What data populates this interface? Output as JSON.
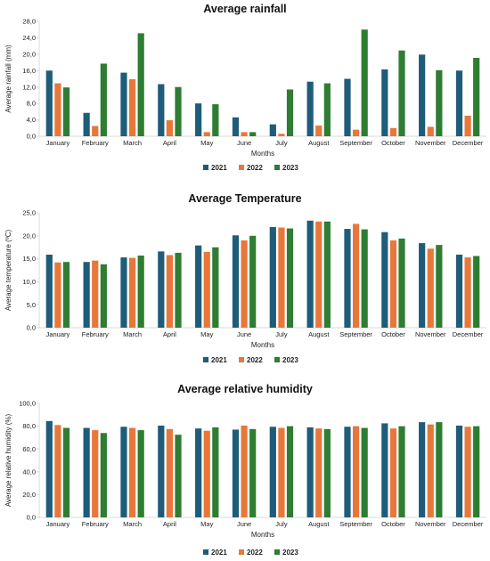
{
  "colors": {
    "s2021": "#1f5c7a",
    "s2022": "#e8773a",
    "s2023": "#2e7d32",
    "axis": "#d9d9d9"
  },
  "chart_data": [
    {
      "type": "bar",
      "title": "Average rainfall",
      "xlabel": "Months",
      "ylabel": "Average rainfall (mm)",
      "ylim": [
        0,
        28
      ],
      "yticks": [
        "0,0",
        "4,0",
        "8,0",
        "12,0",
        "16,0",
        "20,0",
        "24,0",
        "28,0"
      ],
      "categories": [
        "January",
        "February",
        "March",
        "April",
        "May",
        "June",
        "July",
        "August",
        "September",
        "October",
        "November",
        "December"
      ],
      "series": [
        {
          "name": "2021",
          "values": [
            16.0,
            5.7,
            15.5,
            12.7,
            8.0,
            4.6,
            2.9,
            13.3,
            14.0,
            16.3,
            19.9,
            16.0
          ]
        },
        {
          "name": "2022",
          "values": [
            12.9,
            2.5,
            13.9,
            3.9,
            1.0,
            1.0,
            0.6,
            2.6,
            1.6,
            2.0,
            2.3,
            5.0
          ]
        },
        {
          "name": "2023",
          "values": [
            11.9,
            17.7,
            25.1,
            12.0,
            7.8,
            1.0,
            11.4,
            12.9,
            26.0,
            20.9,
            16.1,
            19.1
          ]
        }
      ],
      "legend": "bottom",
      "grid": false
    },
    {
      "type": "bar",
      "title": "Average Temperature",
      "xlabel": "Months",
      "ylabel": "Average temperature (ºC)",
      "ylim": [
        0,
        25
      ],
      "yticks": [
        "0,0",
        "5,0",
        "10,0",
        "15,0",
        "20,0",
        "25,0"
      ],
      "categories": [
        "January",
        "February",
        "March",
        "April",
        "May",
        "June",
        "July",
        "August",
        "September",
        "October",
        "November",
        "December"
      ],
      "series": [
        {
          "name": "2021",
          "values": [
            15.9,
            14.3,
            15.3,
            16.6,
            17.9,
            20.1,
            21.9,
            23.3,
            21.5,
            20.8,
            18.4,
            15.9
          ]
        },
        {
          "name": "2022",
          "values": [
            14.2,
            14.6,
            15.2,
            15.8,
            16.5,
            19.0,
            21.8,
            23.1,
            22.6,
            19.0,
            17.2,
            15.3
          ]
        },
        {
          "name": "2023",
          "values": [
            14.3,
            13.8,
            15.7,
            16.3,
            17.5,
            20.0,
            21.6,
            23.1,
            21.4,
            19.4,
            18.0,
            15.6
          ]
        }
      ],
      "legend": "bottom",
      "grid": false
    },
    {
      "type": "bar",
      "title": "Average relative humidity",
      "xlabel": "Months",
      "ylabel": "Average relative humidity (%)",
      "ylim": [
        0,
        100
      ],
      "yticks": [
        "0,0",
        "20,0",
        "40,0",
        "60,0",
        "80,0",
        "100,0"
      ],
      "categories": [
        "January",
        "February",
        "March",
        "April",
        "May",
        "June",
        "July",
        "August",
        "September",
        "October",
        "November",
        "December"
      ],
      "series": [
        {
          "name": "2021",
          "values": [
            84.5,
            78.5,
            79.5,
            80.5,
            78.0,
            77.0,
            79.5,
            79.0,
            79.5,
            82.5,
            83.5,
            80.5
          ]
        },
        {
          "name": "2022",
          "values": [
            81.0,
            76.5,
            78.5,
            77.5,
            76.0,
            80.5,
            78.5,
            78.0,
            80.0,
            78.0,
            81.5,
            79.5
          ]
        },
        {
          "name": "2023",
          "values": [
            78.5,
            74.0,
            76.5,
            72.5,
            79.0,
            77.5,
            80.0,
            77.5,
            78.5,
            80.0,
            83.5,
            80.0
          ]
        }
      ],
      "legend": "bottom",
      "grid": false
    }
  ]
}
